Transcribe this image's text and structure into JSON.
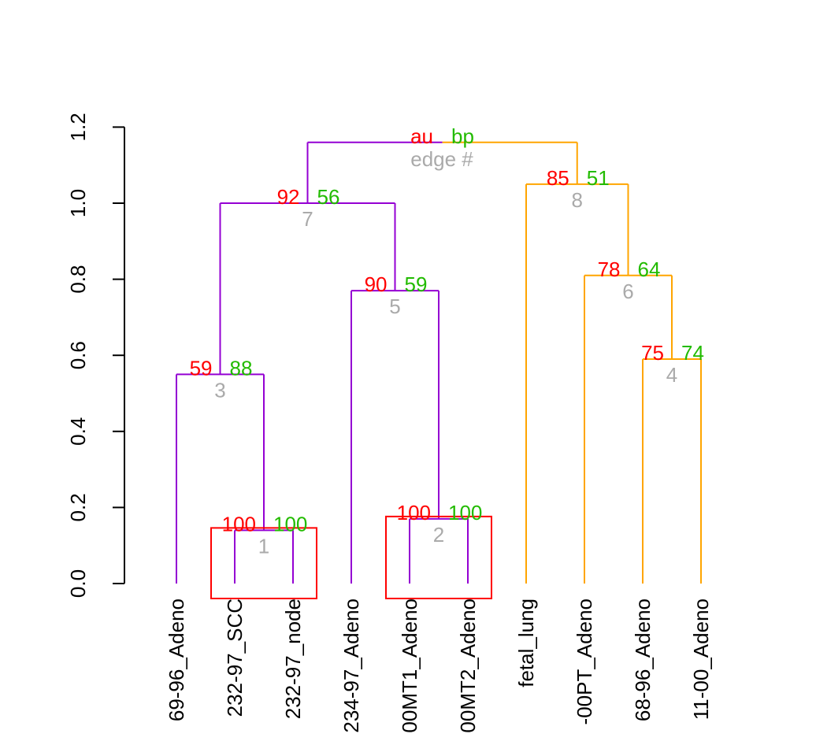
{
  "chart_data": {
    "type": "dendrogram",
    "title": "",
    "ylabel": "",
    "xlabel": "",
    "ylim": [
      0,
      1.2
    ],
    "y_ticks": [
      0.0,
      0.2,
      0.4,
      0.6,
      0.8,
      1.0,
      1.2
    ],
    "y_tick_labels": [
      "0.0",
      "0.2",
      "0.4",
      "0.6",
      "0.8",
      "1.0",
      "1.2"
    ],
    "legend": {
      "au": "au",
      "bp": "bp",
      "edge": "edge #"
    },
    "colors": {
      "au": "#ff0000",
      "bp": "#22bb00",
      "edge": "#aaaaaa",
      "cluster_a": "#9400d3",
      "cluster_b": "#ffa500",
      "highlight_box": "#ff0000",
      "axis": "#000000"
    },
    "leaves": [
      "69-96_Adeno",
      "232-97_SCC",
      "232-97_node",
      "234-97_Adeno",
      "00MT1_Adeno",
      "00MT2_Adeno",
      "fetal_lung",
      "-00PT_Adeno",
      "68-96_Adeno",
      "11-00_Adeno"
    ],
    "merges": [
      {
        "edge": "1",
        "children": [
          "L2",
          "L3"
        ],
        "height": 0.14,
        "au": "100",
        "bp": "100",
        "color": "cluster_a",
        "boxed": true
      },
      {
        "edge": "2",
        "children": [
          "L5",
          "L6"
        ],
        "height": 0.17,
        "au": "100",
        "bp": "100",
        "color": "cluster_a",
        "boxed": true
      },
      {
        "edge": "3",
        "children": [
          "L1",
          "N1"
        ],
        "height": 0.55,
        "au": "59",
        "bp": "88",
        "color": "cluster_a"
      },
      {
        "edge": "4",
        "children": [
          "L9",
          "L10"
        ],
        "height": 0.59,
        "au": "75",
        "bp": "74",
        "color": "cluster_b"
      },
      {
        "edge": "5",
        "children": [
          "L4",
          "N2"
        ],
        "height": 0.77,
        "au": "90",
        "bp": "59",
        "color": "cluster_a"
      },
      {
        "edge": "6",
        "children": [
          "L8",
          "N4"
        ],
        "height": 0.81,
        "au": "78",
        "bp": "64",
        "color": "cluster_b"
      },
      {
        "edge": "7",
        "children": [
          "N3",
          "N5"
        ],
        "height": 1.0,
        "au": "92",
        "bp": "56",
        "color": "cluster_a"
      },
      {
        "edge": "8",
        "children": [
          "L7",
          "N6"
        ],
        "height": 1.05,
        "au": "85",
        "bp": "51",
        "color": "cluster_b"
      },
      {
        "edge": "",
        "children": [
          "N7",
          "N8"
        ],
        "height": 1.16,
        "au": "",
        "bp": "",
        "color": "cluster_b",
        "left_color": "cluster_a",
        "root": true
      }
    ]
  }
}
